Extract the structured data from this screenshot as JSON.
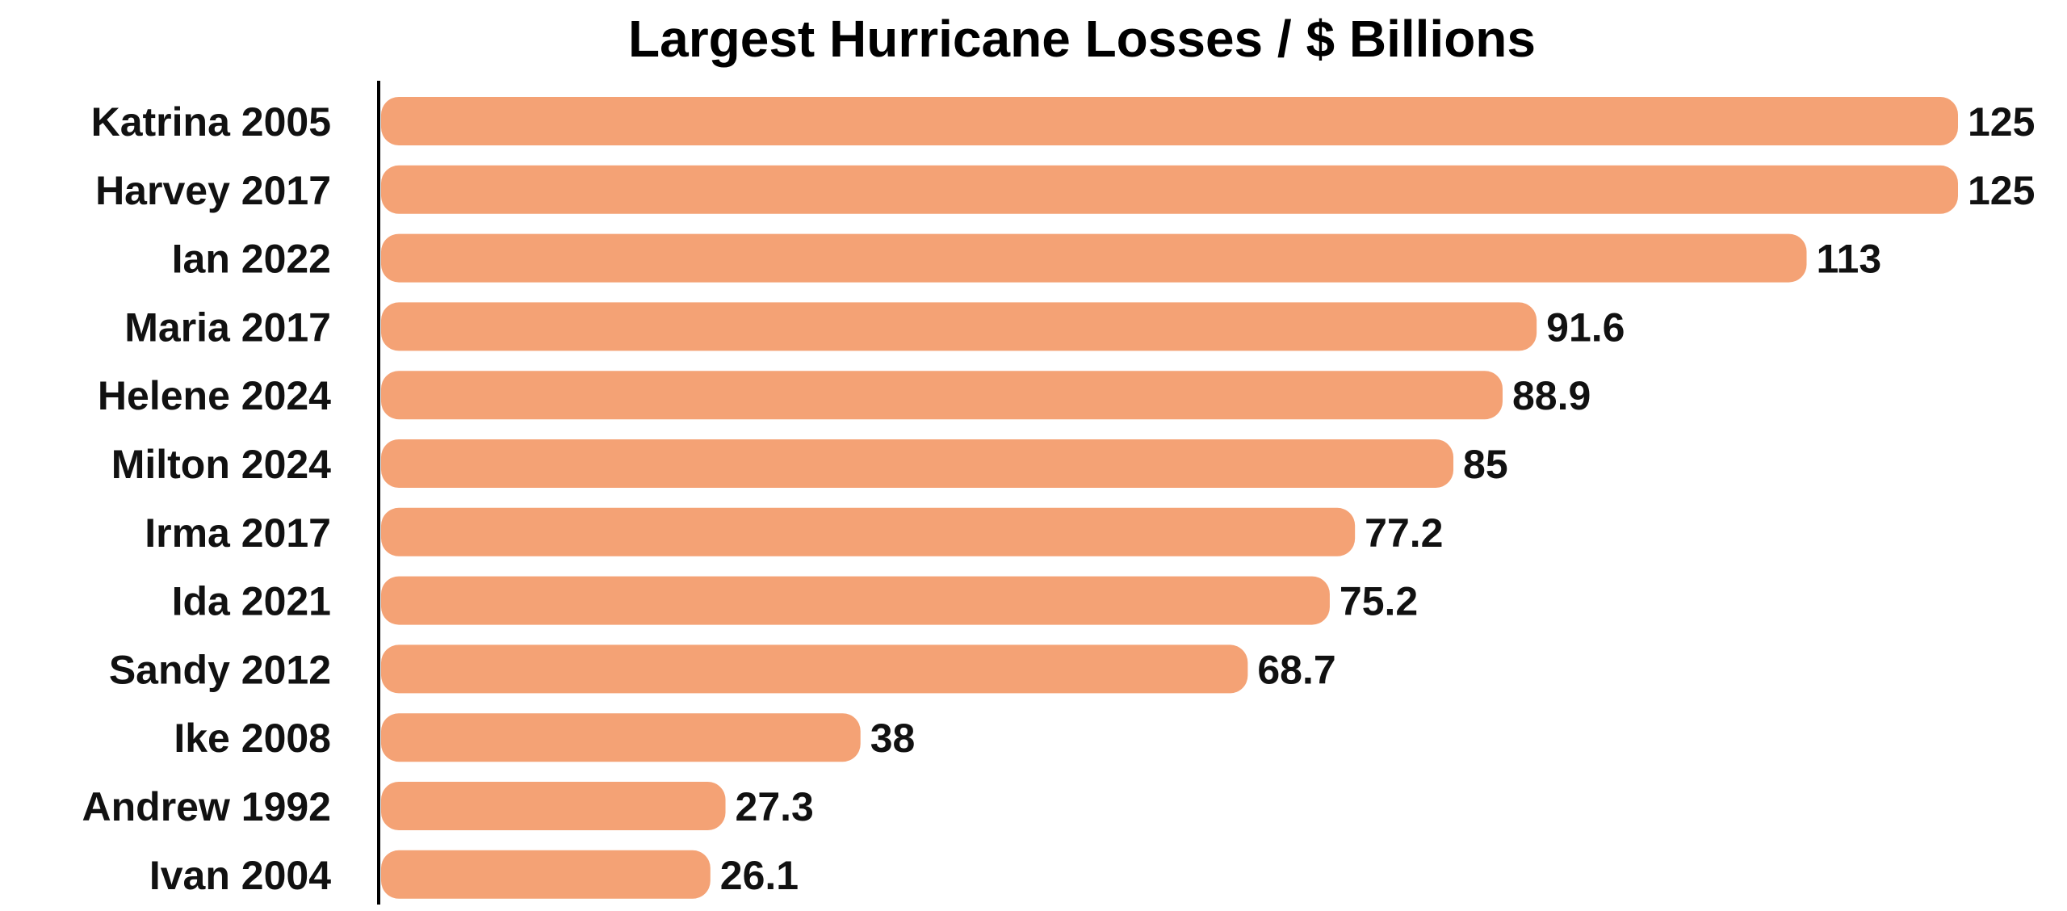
{
  "chart_data": {
    "type": "bar",
    "orientation": "horizontal",
    "title": "Largest Hurricane Losses / $ Billions",
    "xlabel": "",
    "ylabel": "",
    "categories": [
      "Katrina 2005",
      "Harvey 2017",
      "Ian 2022",
      "Maria 2017",
      "Helene 2024",
      "Milton 2024",
      "Irma 2017",
      "Ida 2021",
      "Sandy 2012",
      "Ike 2008",
      "Andrew 1992",
      "Ivan 2004"
    ],
    "values": [
      125,
      125,
      113,
      91.6,
      88.9,
      85,
      77.2,
      75.2,
      68.7,
      38,
      27.3,
      26.1
    ],
    "value_labels": [
      "125",
      "125",
      "113",
      "91.6",
      "88.9",
      "85",
      "77.2",
      "75.2",
      "68.7",
      "38",
      "27.3",
      "26.1"
    ],
    "xlim": [
      0,
      125
    ],
    "grid": false,
    "legend": "none",
    "bar_color": "#F4A275",
    "axis_color": "#000000",
    "text_color": "#111111"
  }
}
